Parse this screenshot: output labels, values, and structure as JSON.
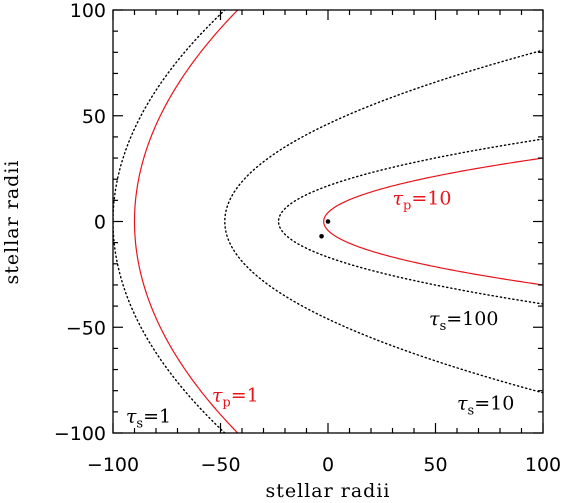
{
  "chart_data": {
    "type": "line",
    "title": "",
    "xlabel": "stellar radii",
    "ylabel": "stellar radii",
    "xlim": [
      -100,
      100
    ],
    "ylim": [
      -100,
      100
    ],
    "xticks": [
      "−100",
      "−50",
      "0",
      "50",
      "100"
    ],
    "yticks": [
      "−100",
      "−50",
      "0",
      "50",
      "100"
    ],
    "grid": false,
    "colors": {
      "primary": "#e8141b",
      "secondary": "#000000"
    },
    "series": [
      {
        "name": "τs=1",
        "color": "#000000",
        "style": "dotted",
        "shape": "parabola",
        "vertex_x": -100,
        "x_at_y100": -48
      },
      {
        "name": "τp=1",
        "color": "#e8141b",
        "style": "solid",
        "shape": "parabola",
        "vertex_x": -90,
        "x_at_y100": -42
      },
      {
        "name": "τs=10",
        "color": "#000000",
        "style": "dotted",
        "shape": "closed",
        "vertex_x": -48,
        "y_at_x100": 81
      },
      {
        "name": "τs=100",
        "color": "#000000",
        "style": "dotted",
        "shape": "closed",
        "vertex_x": -23,
        "y_at_x100": 39
      },
      {
        "name": "τp=10",
        "color": "#e8141b",
        "style": "solid",
        "shape": "closed",
        "vertex_x": -2,
        "y_at_x100": 30
      }
    ],
    "points": [
      {
        "x": 0,
        "y": 0
      },
      {
        "x": -3,
        "y": -7
      }
    ],
    "annotations": [
      {
        "sym": "τ",
        "sub": "p",
        "text": "=10",
        "x": 30,
        "y": 8,
        "color": "#e8141b"
      },
      {
        "sym": "τ",
        "sub": "s",
        "text": "=100",
        "x": 47,
        "y": -49,
        "color": "#000000"
      },
      {
        "sym": "τ",
        "sub": "s",
        "text": "=10",
        "x": 60,
        "y": -89,
        "color": "#000000"
      },
      {
        "sym": "τ",
        "sub": "p",
        "text": "=1",
        "x": -54,
        "y": -85,
        "color": "#e8141b"
      },
      {
        "sym": "τ",
        "sub": "s",
        "text": "=1",
        "x": -94,
        "y": -95,
        "color": "#000000"
      }
    ]
  }
}
